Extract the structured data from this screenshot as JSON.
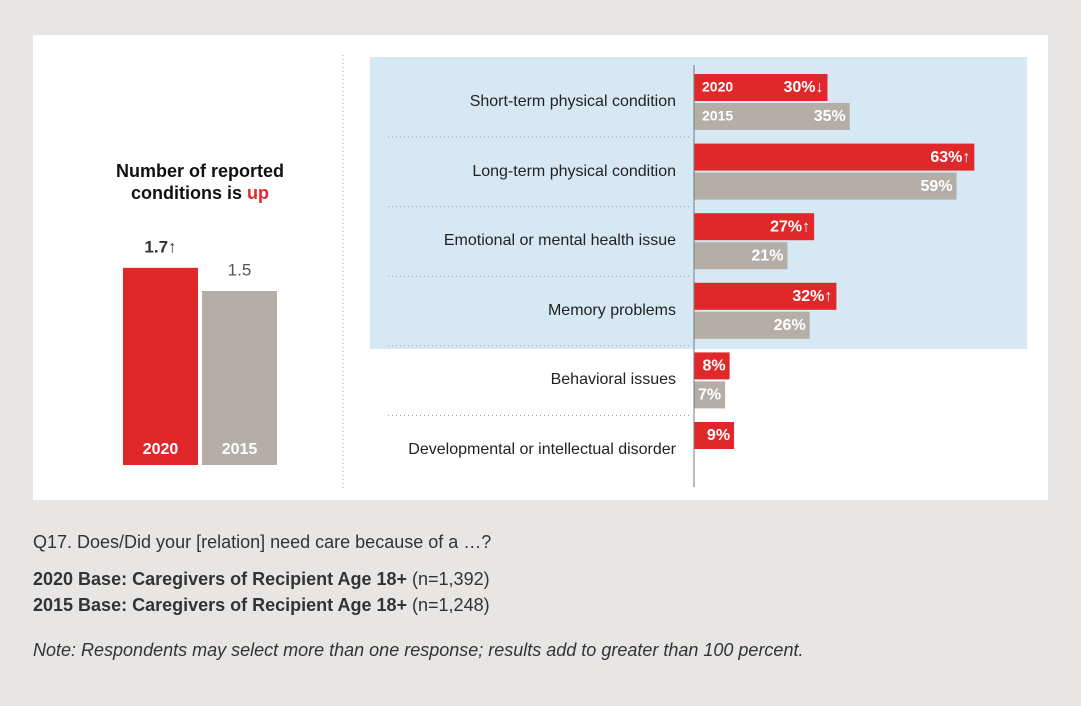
{
  "chart_data": [
    {
      "type": "bar",
      "title": "Number of reported conditions is",
      "title_highlight": "up",
      "categories": [
        "2020",
        "2015"
      ],
      "values": [
        1.7,
        1.5
      ],
      "value_labels": [
        "1.7↑",
        "1.5"
      ],
      "colors": [
        "#e0282a",
        "#b5aea8"
      ]
    },
    {
      "type": "hbar",
      "categories": [
        "Short-term physical condition",
        "Long-term physical condition",
        "Emotional or mental health issue",
        "Memory problems",
        "Behavioral issues",
        "Developmental or intellectual disorder"
      ],
      "series": [
        {
          "name": "2020",
          "color": "#e0282a",
          "values": [
            30,
            63,
            27,
            32,
            8,
            9
          ],
          "value_labels": [
            "30%↓",
            "63%↑",
            "27%↑",
            "32%↑",
            "8%",
            "9%"
          ]
        },
        {
          "name": "2015",
          "color": "#b5aea8",
          "values": [
            35,
            59,
            21,
            26,
            7,
            null
          ],
          "value_labels": [
            "35%",
            "59%",
            "21%",
            "26%",
            "7%",
            null
          ]
        }
      ]
    }
  ],
  "notes": {
    "question": "Q17.   Does/Did your [relation] need care because of a …?",
    "bases": [
      {
        "label": "2020 Base: Caregivers of Recipient Age 18+",
        "n": "(n=1,392)"
      },
      {
        "label": "2015 Base: Caregivers of Recipient Age 18+",
        "n": "(n=1,248)"
      }
    ],
    "note": "Note: Respondents may select more than one response; results add to greater than 100 percent."
  }
}
